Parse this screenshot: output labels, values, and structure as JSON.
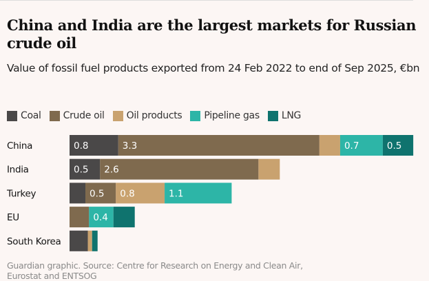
{
  "chart_data": {
    "type": "bar",
    "orientation": "horizontal",
    "stacked": true,
    "title": "China and India are the largest markets for Russian crude oil",
    "subtitle": "Value of fossil fuel products exported from 24 Feb 2022 to end of Sep 2025, €bn",
    "categories": [
      "China",
      "India",
      "Turkey",
      "EU",
      "South Korea"
    ],
    "series": [
      {
        "name": "Coal",
        "color": "#4a4848",
        "values": [
          0.8,
          0.5,
          0.26,
          0,
          0.3
        ],
        "labels": [
          "0.8",
          "0.5",
          "",
          "",
          ""
        ]
      },
      {
        "name": "Crude oil",
        "color": "#7f6a4e",
        "values": [
          3.3,
          2.6,
          0.5,
          0.32,
          0
        ],
        "labels": [
          "3.3",
          "2.6",
          "0.5",
          "",
          ""
        ]
      },
      {
        "name": "Oil products",
        "color": "#c9a26f",
        "values": [
          0.34,
          0.35,
          0.8,
          0,
          0.07
        ],
        "labels": [
          "",
          "",
          "0.8",
          "",
          ""
        ]
      },
      {
        "name": "Pipeline gas",
        "color": "#2db5a7",
        "values": [
          0.7,
          0,
          1.1,
          0.4,
          0
        ],
        "labels": [
          "0.7",
          "",
          "1.1",
          "0.4",
          ""
        ]
      },
      {
        "name": "LNG",
        "color": "#0f736e",
        "values": [
          0.5,
          0,
          0,
          0.35,
          0.09
        ],
        "labels": [
          "0.5",
          "",
          "",
          "",
          ""
        ]
      }
    ],
    "legend": "top-left",
    "grid": false,
    "axes_visible": false,
    "unit": "€bn"
  },
  "footer": {
    "line1": "Guardian graphic. Source: Centre for Research on Energy and Clean Air,",
    "line2": "Eurostat and ENTSOG"
  }
}
